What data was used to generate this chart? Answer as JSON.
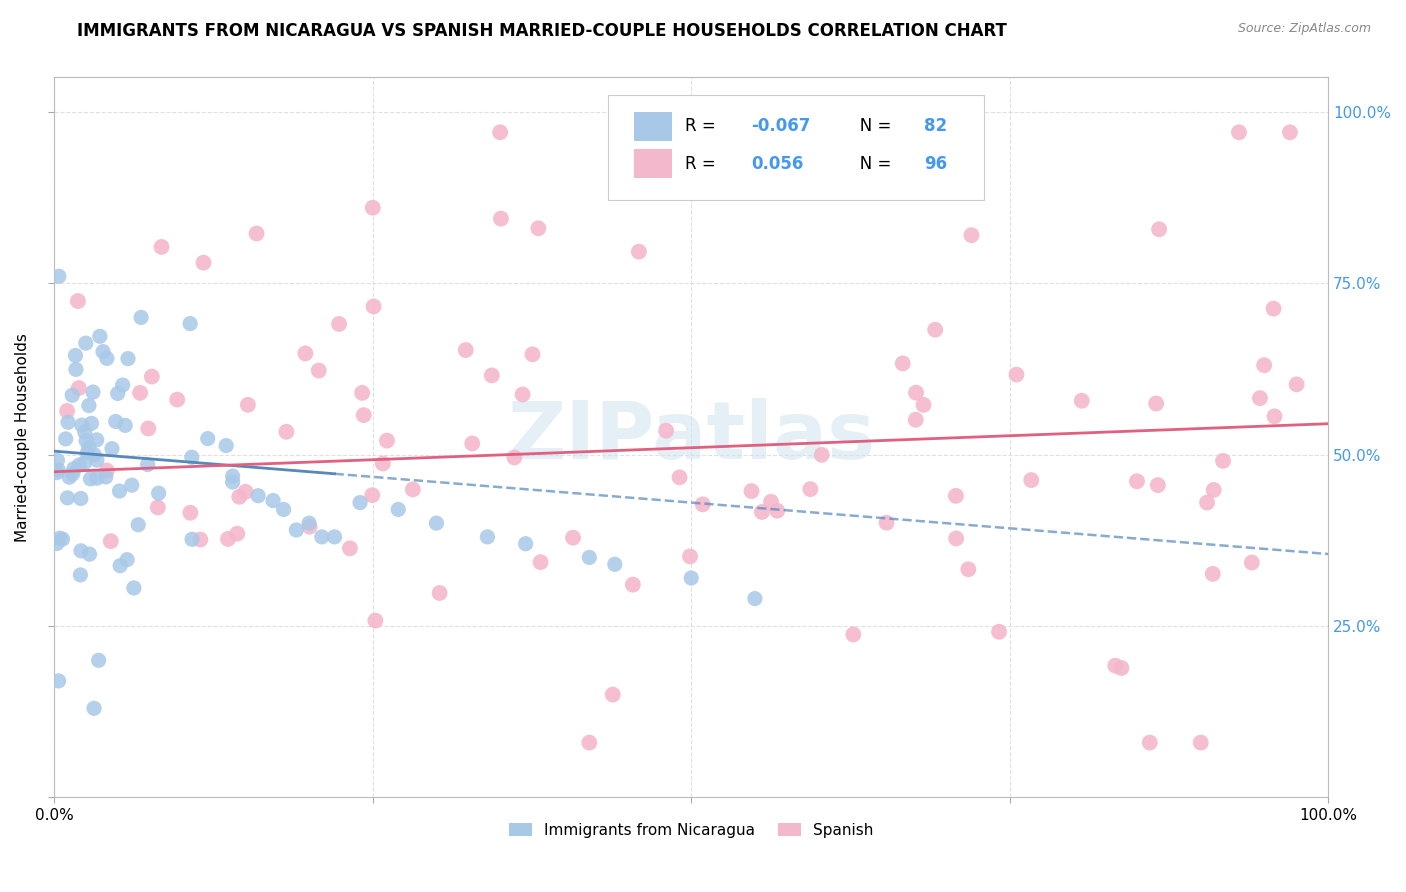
{
  "title": "IMMIGRANTS FROM NICARAGUA VS SPANISH MARRIED-COUPLE HOUSEHOLDS CORRELATION CHART",
  "source": "Source: ZipAtlas.com",
  "ylabel": "Married-couple Households",
  "watermark": "ZIPatlas",
  "legend_R_blue": "-0.067",
  "legend_N_blue": "82",
  "legend_R_pink": "0.056",
  "legend_N_pink": "96",
  "blue_color": "#a8c8e8",
  "pink_color": "#f4b8cc",
  "blue_line_color": "#5588bb",
  "pink_line_color": "#e06080",
  "blue_line_start_y": 0.505,
  "blue_line_end_y": 0.355,
  "pink_line_start_y": 0.475,
  "pink_line_end_y": 0.545,
  "xlim": [
    0.0,
    1.0
  ],
  "ylim": [
    0.0,
    1.05
  ],
  "background_color": "#ffffff",
  "grid_color": "#dddddd",
  "title_fontsize": 12,
  "axis_fontsize": 11,
  "tick_color_right": "#4499ee",
  "watermark_color": "#d0e4f0"
}
